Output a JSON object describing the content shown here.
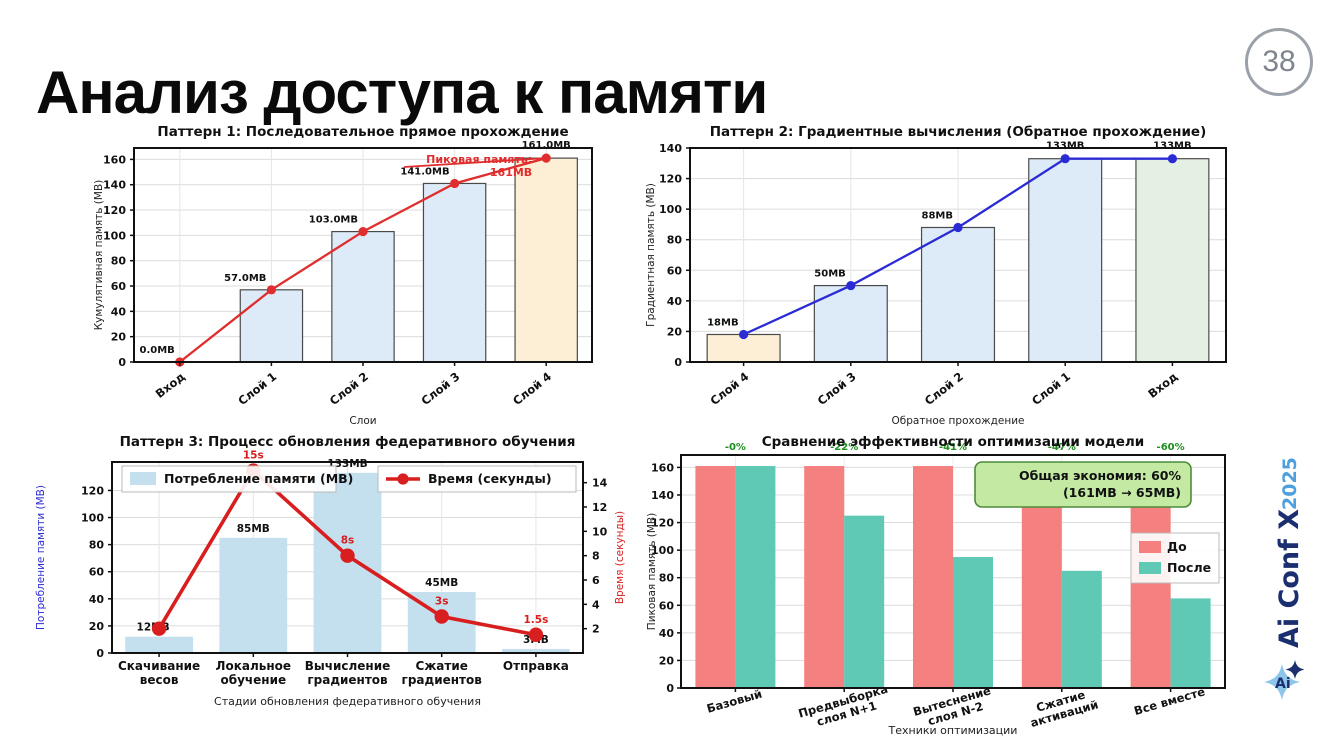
{
  "slide": {
    "title": "Анализ доступа к памяти",
    "page_number": "38",
    "logo": {
      "brand": "Ai Conf X",
      "year": "2025",
      "icon": "four-point-star",
      "brand_color": "#1b2f70",
      "year_color": "#4da0dd"
    }
  },
  "chart_data": [
    {
      "type": "bar",
      "title": "Паттерн 1: Последовательное прямое прохождение",
      "xlabel": "Слои",
      "ylabel": "Кумулятивная память (MB)",
      "categories": [
        "Вход",
        "Слой 1",
        "Слой 2",
        "Слой 3",
        "Слой 4"
      ],
      "values": [
        0.0,
        57.0,
        103.0,
        141.0,
        161.0
      ],
      "point_labels": [
        "0.0MB",
        "57.0MB",
        "103.0MB",
        "141.0MB",
        "161.0MB"
      ],
      "bar_colors": [
        "#ddeaf7",
        "#ddeaf7",
        "#ddeaf7",
        "#ddeaf7",
        "#fcefd5"
      ],
      "bar_edge": "#4a4a4a",
      "line_color": "#e02d2d",
      "annotation": {
        "text_lines": [
          "Пиковая память:",
          "161MB"
        ],
        "color": "#e02d2d"
      },
      "ylim": [
        0,
        169
      ],
      "yticks": [
        0,
        20,
        40,
        60,
        80,
        100,
        120,
        140,
        160
      ],
      "grid": true,
      "legend_position": "none"
    },
    {
      "type": "bar",
      "title": "Паттерн 2: Градиентные вычисления (Обратное прохождение)",
      "xlabel": "Обратное прохождение",
      "ylabel": "Градиентная память (MB)",
      "categories": [
        "Слой 4",
        "Слой 3",
        "Слой 2",
        "Слой 1",
        "Вход"
      ],
      "values": [
        18,
        50,
        88,
        133,
        133
      ],
      "point_labels": [
        "18MB",
        "50MB",
        "88MB",
        "133MB",
        "133MB"
      ],
      "bar_colors": [
        "#fcefd5",
        "#ddeaf7",
        "#ddeaf7",
        "#ddeaf7",
        "#e4f1e2"
      ],
      "bar_edge": "#4a4a4a",
      "line_color": "#2b2bd5",
      "ylim": [
        0,
        140
      ],
      "yticks": [
        0,
        20,
        40,
        60,
        80,
        100,
        120,
        140
      ],
      "grid": true
    },
    {
      "type": "bar+line-dual-axis",
      "title": "Паттерн 3: Процесс обновления федеративного обучения",
      "xlabel": "Стадии обновления федеративного обучения",
      "ylabel_left": "Потребление памяти (MB)",
      "ylabel_right": "Время (секунды)",
      "ylabel_left_color": "#2b2bd5",
      "ylabel_right_color": "#d81e1e",
      "categories": [
        "Скачивание\nвесов",
        "Локальное\nобучение",
        "Вычисление\nградиентов",
        "Сжатие\nградиентов",
        "Отправка"
      ],
      "series": [
        {
          "name": "Потребление памяти (MB)",
          "kind": "bar",
          "color": "#c4dfee",
          "values": [
            12,
            85,
            133,
            45,
            3
          ],
          "labels": [
            "12MB",
            "85MB",
            "133MB",
            "45MB",
            "3MB"
          ]
        },
        {
          "name": "Время (секунды)",
          "kind": "line",
          "color": "#d81e1e",
          "values": [
            2,
            15,
            8,
            3,
            1.5
          ],
          "labels": [
            null,
            "15s",
            "8s",
            "3s",
            "1.5s"
          ]
        }
      ],
      "ylim_left": [
        0,
        141
      ],
      "yticks_left": [
        0,
        20,
        40,
        60,
        80,
        100,
        120
      ],
      "ylim_right": [
        0,
        15.7
      ],
      "yticks_right": [
        2,
        4,
        6,
        8,
        10,
        12,
        14
      ],
      "grid": true,
      "legend_position": "top"
    },
    {
      "type": "grouped-bar",
      "title": "Сравнение эффективности оптимизации модели",
      "xlabel": "Техники оптимизации",
      "ylabel": "Пиковая память (MB)",
      "categories": [
        "Базовый",
        "Предвыборка\nслоя N+1",
        "Вытеснение\nслоя N-2",
        "Сжатие\nактиваций",
        "Все вместе"
      ],
      "series": [
        {
          "name": "До",
          "color": "#f58080",
          "values": [
            161,
            161,
            161,
            161,
            161
          ]
        },
        {
          "name": "После",
          "color": "#5fc9b6",
          "values": [
            161,
            125,
            95,
            85,
            65
          ]
        }
      ],
      "pct_labels": [
        "-0%",
        "-22%",
        "-41%",
        "-47%",
        "-60%"
      ],
      "pct_color": "#1d8f1d",
      "annotation": {
        "text_lines": [
          "Общая экономия: 60%",
          "(161MB → 65MB)"
        ],
        "fill": "#c3e9a3",
        "border": "#4d8b3a"
      },
      "ylim": [
        0,
        169
      ],
      "yticks": [
        0,
        20,
        40,
        60,
        80,
        100,
        120,
        140,
        160
      ],
      "legend": [
        "До",
        "После"
      ],
      "legend_position": "middle-right",
      "grid": true
    }
  ]
}
